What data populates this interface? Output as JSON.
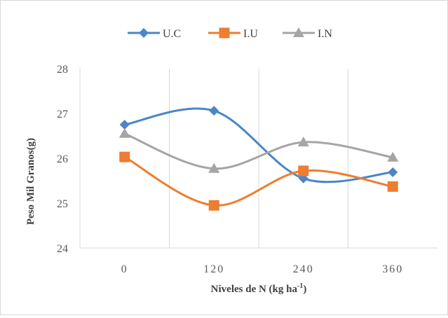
{
  "chart_data": {
    "type": "line",
    "smooth": true,
    "categories": [
      "0",
      "120",
      "240",
      "360"
    ],
    "series": [
      {
        "name": "U.C",
        "color": "#4a86c8",
        "marker": "diamond",
        "values": [
          26.75,
          27.06,
          25.55,
          25.69
        ]
      },
      {
        "name": "I.U",
        "color": "#ed7d31",
        "marker": "square",
        "values": [
          26.03,
          24.95,
          25.72,
          25.37
        ]
      },
      {
        "name": "I.N",
        "color": "#a5a5a5",
        "marker": "triangle",
        "values": [
          26.55,
          25.77,
          26.36,
          26.02
        ]
      }
    ],
    "title": "",
    "xlabel": "Niveles de N (kg ha",
    "xlabel_superscript": "-1",
    "xlabel_suffix": ")",
    "ylabel": "Peso Mil Granos(g)",
    "ylim": [
      24,
      28
    ],
    "yticks": [
      "24",
      "25",
      "26",
      "27",
      "28"
    ],
    "grid": "vertical",
    "legend_position": "top"
  }
}
